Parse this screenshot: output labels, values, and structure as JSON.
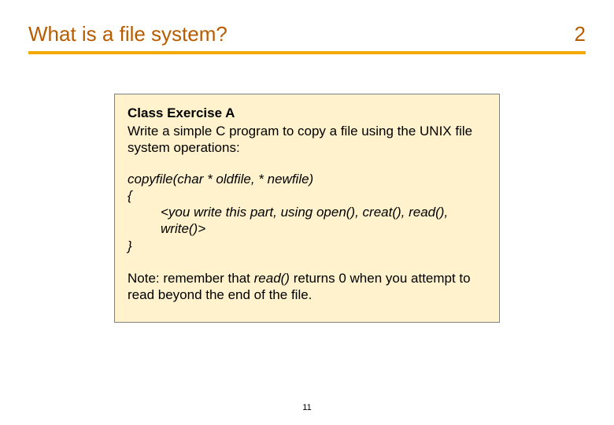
{
  "slide": {
    "title": "What is a file system?",
    "number_top": "2",
    "hr_color": "#f2a900",
    "title_color": "#b85c00",
    "number_footer": "11"
  },
  "exercise": {
    "heading": "Class Exercise A",
    "intro": "Write a simple C program to copy a file using the UNIX file system operations:",
    "code": {
      "sig": "copyfile(char * oldfile, * newfile)",
      "open": "{",
      "body": "<you write this part, using open(), creat(),  read(), write()>",
      "close": "}"
    },
    "note_prefix": "Note: remember that ",
    "note_italic": "read()",
    "note_suffix": " returns 0 when you attempt to read beyond the end of the file.",
    "box_bg": "#fff2cc",
    "box_border": "#808080"
  }
}
